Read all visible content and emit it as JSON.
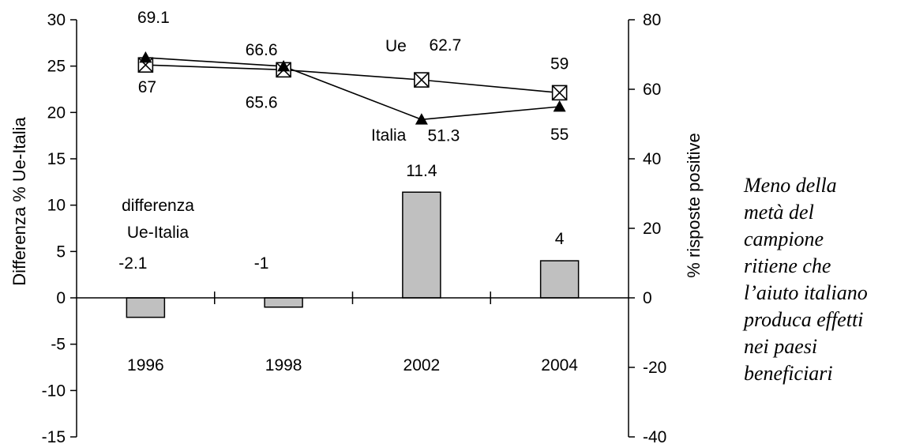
{
  "chart_data": {
    "type": "bar+line",
    "categories": [
      "1996",
      "1998",
      "2002",
      "2004"
    ],
    "bar_series": {
      "name": "differenza Ue-Italia",
      "values": [
        -2.1,
        -1,
        11.4,
        4
      ],
      "labels": [
        "-2.1",
        "-1",
        "11.4",
        "4"
      ],
      "color": "#c0c0c0"
    },
    "line_series": [
      {
        "name": "Ue",
        "values": [
          67,
          65.6,
          62.7,
          59
        ],
        "labels": [
          "67",
          "65.6",
          "62.7",
          "59"
        ],
        "marker": "boxed-x"
      },
      {
        "name": "Italia",
        "values": [
          69.1,
          66.6,
          51.3,
          55
        ],
        "labels": [
          "69.1",
          "66.6",
          "51.3",
          "55"
        ],
        "marker": "triangle"
      }
    ],
    "ylabel_left": "Differenza % Ue-Italia",
    "ylabel_right": "% risposte positive",
    "ylim_left": [
      -15,
      30
    ],
    "yticks_left": [
      "30",
      "25",
      "20",
      "15",
      "10",
      "5",
      "0",
      "-5",
      "-10",
      "-15"
    ],
    "ylim_right": [
      -40,
      80
    ],
    "yticks_right": [
      "80",
      "60",
      "40",
      "20",
      "0",
      "-20",
      "-40"
    ],
    "grid": false,
    "legend": "none"
  },
  "annotations": {
    "bar_series_label_lines": [
      "differenza",
      "Ue-Italia"
    ],
    "ue_label": "Ue",
    "italia_label": "Italia"
  },
  "side_note": {
    "lines": [
      "Meno della",
      "metà del",
      "campione",
      "ritiene che",
      "l’aiuto italiano",
      "produca effetti",
      "nei paesi",
      "beneficiari"
    ]
  }
}
